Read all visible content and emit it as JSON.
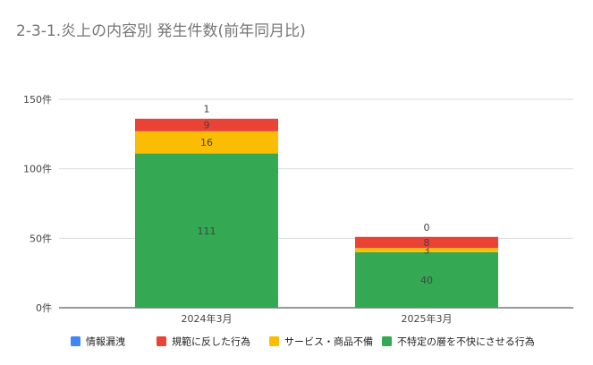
{
  "chart_data": {
    "type": "bar",
    "stacked": true,
    "title": "2-3-1.炎上の内容別 発生件数(前年同月比)",
    "xlabel": "",
    "ylabel": "",
    "categories": [
      "2024年3月",
      "2025年3月"
    ],
    "y_ticks": [
      "0件",
      "50件",
      "100件",
      "150件"
    ],
    "ylim": [
      0,
      150
    ],
    "grid": true,
    "legend_position": "bottom",
    "series": [
      {
        "name": "情報漏洩",
        "color": "#4285f4",
        "values": [
          null,
          null
        ],
        "labels": [
          "",
          ""
        ]
      },
      {
        "name": "不特定の層を不快にさせる行為",
        "color": "#34a853",
        "values": [
          111,
          40
        ],
        "labels": [
          "111",
          "40"
        ]
      },
      {
        "name": "サービス・商品不備",
        "color": "#fbbc04",
        "values": [
          16,
          3
        ],
        "labels": [
          "16",
          "3"
        ]
      },
      {
        "name": "規範に反した行為",
        "color": "#ea4335",
        "values": [
          9,
          8
        ],
        "labels": [
          "9",
          "8"
        ]
      }
    ],
    "top_labels": [
      "1",
      "0"
    ],
    "legend_order": [
      "情報漏洩",
      "規範に反した行為",
      "サービス・商品不備",
      "不特定の層を不快にさせる行為"
    ]
  }
}
